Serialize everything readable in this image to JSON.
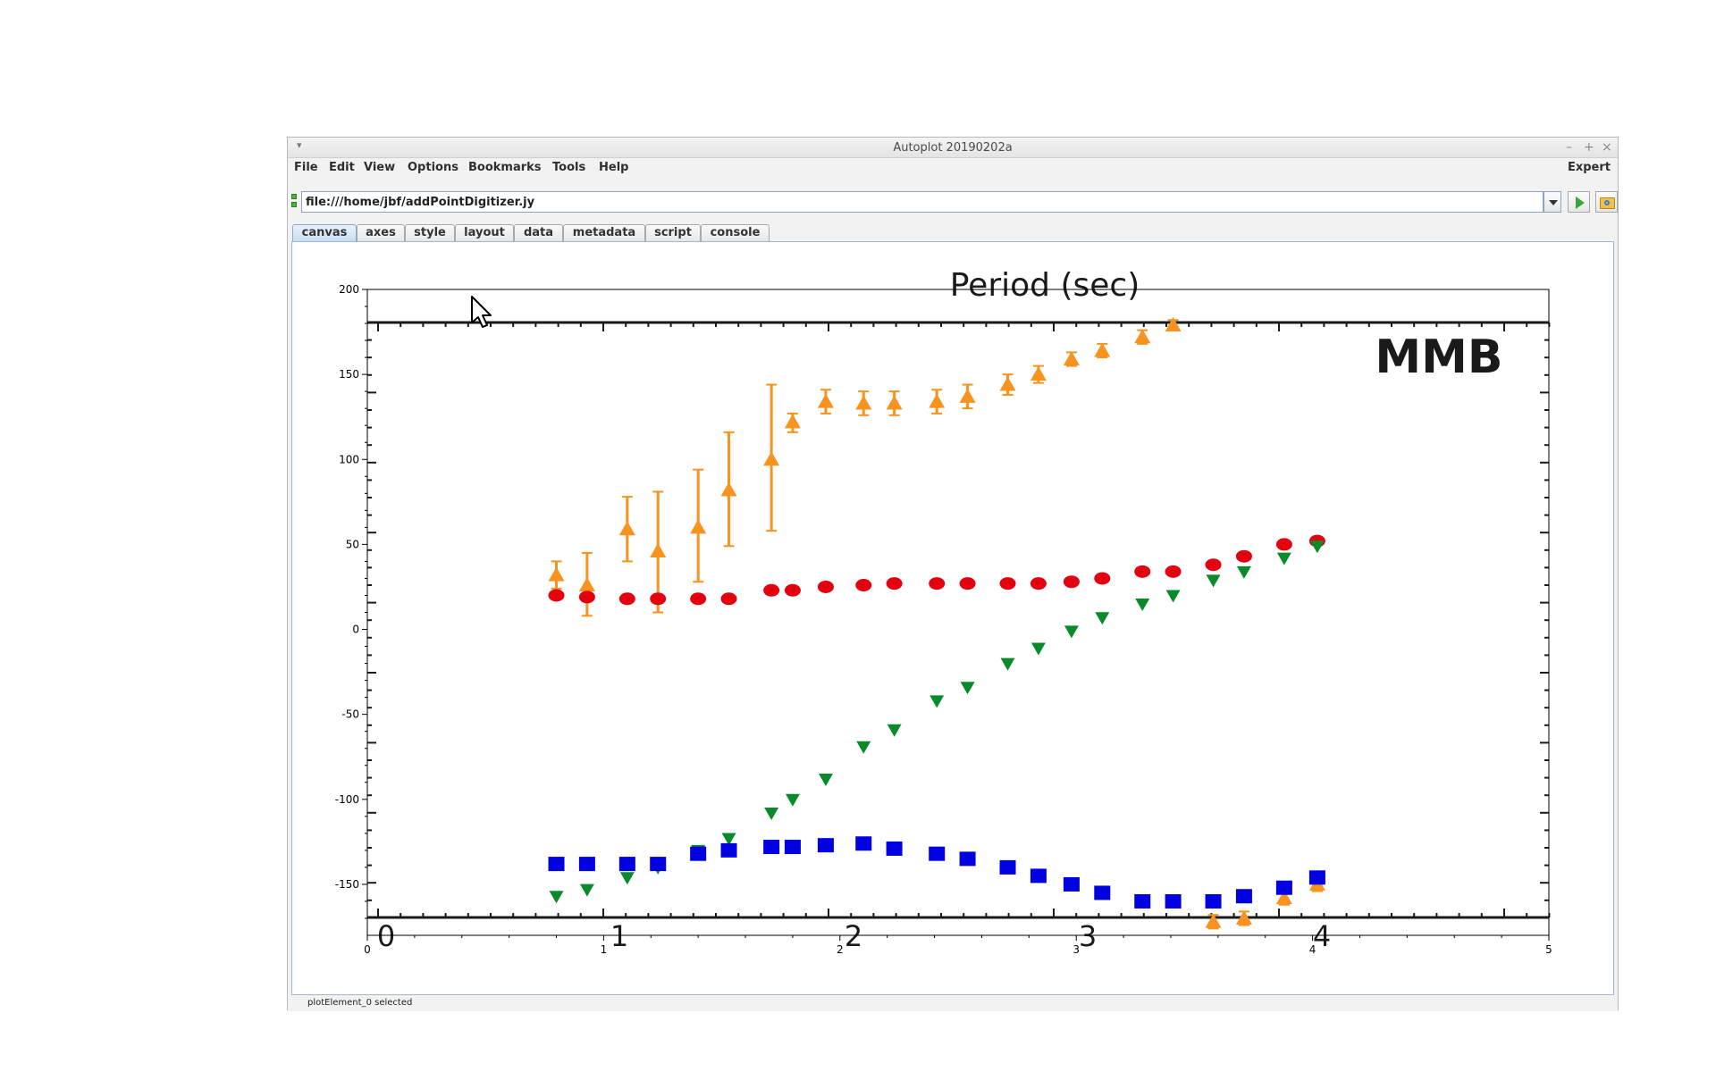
{
  "window": {
    "title": "Autoplot 20190202a",
    "menu_glyph": "▾",
    "minimize": "–",
    "maximize": "+",
    "close": "×"
  },
  "menubar": {
    "items": [
      "File",
      "Edit",
      "View",
      "Options",
      "Bookmarks",
      "Tools",
      "Help"
    ],
    "expert": "Expert"
  },
  "url": {
    "value": "file:///home/jbf/addPointDigitizer.jy"
  },
  "tabs": [
    "canvas",
    "axes",
    "style",
    "layout",
    "data",
    "metadata",
    "script",
    "console"
  ],
  "active_tab": "canvas",
  "status": {
    "text": "plotElement_0 selected"
  },
  "icons": {
    "url_status": "status-indicator-icon",
    "dropdown": "dropdown-arrow-icon",
    "go": "play-icon",
    "browse": "folder-browse-icon",
    "cursor": "mouse-pointer-icon"
  },
  "background_image": {
    "top_label": "Period (sec)",
    "corner_label": "MMB",
    "x_ticks": [
      "0",
      "1",
      "2",
      "3",
      "4"
    ]
  },
  "chart_data": {
    "type": "scatter",
    "title": "",
    "xlabel": "",
    "ylabel": "",
    "xlim": [
      0,
      5
    ],
    "ylim": [
      -180,
      200
    ],
    "x_ticks": [
      "0",
      "1",
      "2",
      "3",
      "4",
      "5"
    ],
    "y_ticks": [
      "200",
      "150",
      "100",
      "50",
      "0",
      "-50",
      "-100",
      "-150"
    ],
    "grid": false,
    "series": [
      {
        "marker": "triangle-up",
        "color": "#f7931e",
        "points": [
          [
            0.8,
            32,
            40,
            24
          ],
          [
            0.93,
            26,
            45,
            8
          ],
          [
            1.1,
            59,
            78,
            40
          ],
          [
            1.23,
            46,
            81,
            10
          ],
          [
            1.4,
            60,
            94,
            28
          ],
          [
            1.53,
            82,
            116,
            49
          ],
          [
            1.71,
            100,
            144,
            58
          ],
          [
            1.8,
            122,
            127,
            116
          ],
          [
            1.94,
            134,
            141,
            127
          ],
          [
            2.1,
            133,
            140,
            126
          ],
          [
            2.23,
            133,
            140,
            126
          ],
          [
            2.41,
            134,
            141,
            127
          ],
          [
            2.54,
            137,
            144,
            130
          ],
          [
            2.71,
            144,
            150,
            138
          ],
          [
            2.84,
            150,
            155,
            145
          ],
          [
            2.98,
            159,
            163,
            155
          ],
          [
            3.11,
            164,
            168,
            160
          ],
          [
            3.28,
            172,
            176,
            168
          ],
          [
            3.41,
            179,
            182,
            176
          ],
          [
            3.58,
            -172,
            -168,
            -176
          ],
          [
            3.71,
            -170,
            -166,
            -174
          ],
          [
            3.88,
            -158,
            -154,
            -162
          ],
          [
            4.02,
            -150,
            -146,
            -154
          ]
        ]
      },
      {
        "marker": "circle",
        "color": "#e3000f",
        "points": [
          [
            0.8,
            20
          ],
          [
            0.93,
            19
          ],
          [
            1.1,
            18
          ],
          [
            1.23,
            18
          ],
          [
            1.4,
            18
          ],
          [
            1.53,
            18
          ],
          [
            1.71,
            23
          ],
          [
            1.8,
            23
          ],
          [
            1.94,
            25
          ],
          [
            2.1,
            26
          ],
          [
            2.23,
            27
          ],
          [
            2.41,
            27
          ],
          [
            2.54,
            27
          ],
          [
            2.71,
            27
          ],
          [
            2.84,
            27
          ],
          [
            2.98,
            28
          ],
          [
            3.11,
            30
          ],
          [
            3.28,
            34
          ],
          [
            3.41,
            34
          ],
          [
            3.58,
            38
          ],
          [
            3.71,
            43
          ],
          [
            3.88,
            50
          ],
          [
            4.02,
            52
          ]
        ]
      },
      {
        "marker": "triangle-down",
        "color": "#0a8a2a",
        "points": [
          [
            0.8,
            -157
          ],
          [
            0.93,
            -153
          ],
          [
            1.1,
            -146
          ],
          [
            1.23,
            -140
          ],
          [
            1.4,
            -130
          ],
          [
            1.53,
            -123
          ],
          [
            1.71,
            -108
          ],
          [
            1.8,
            -100
          ],
          [
            1.94,
            -88
          ],
          [
            2.1,
            -69
          ],
          [
            2.23,
            -59
          ],
          [
            2.41,
            -42
          ],
          [
            2.54,
            -34
          ],
          [
            2.71,
            -20
          ],
          [
            2.84,
            -11
          ],
          [
            2.98,
            -1
          ],
          [
            3.11,
            7
          ],
          [
            3.28,
            15
          ],
          [
            3.41,
            20
          ],
          [
            3.58,
            29
          ],
          [
            3.71,
            34
          ],
          [
            3.88,
            42
          ],
          [
            4.02,
            49
          ]
        ]
      },
      {
        "marker": "square",
        "color": "#0000e0",
        "points": [
          [
            0.8,
            -138
          ],
          [
            0.93,
            -138
          ],
          [
            1.1,
            -138
          ],
          [
            1.23,
            -138
          ],
          [
            1.4,
            -132
          ],
          [
            1.53,
            -130
          ],
          [
            1.71,
            -128
          ],
          [
            1.8,
            -128
          ],
          [
            1.94,
            -127
          ],
          [
            2.1,
            -126
          ],
          [
            2.23,
            -129
          ],
          [
            2.41,
            -132
          ],
          [
            2.54,
            -135
          ],
          [
            2.71,
            -140
          ],
          [
            2.84,
            -145
          ],
          [
            2.98,
            -150
          ],
          [
            3.11,
            -155
          ],
          [
            3.28,
            -160
          ],
          [
            3.41,
            -160
          ],
          [
            3.58,
            -160
          ],
          [
            3.71,
            -157
          ],
          [
            3.88,
            -152
          ],
          [
            4.02,
            -146
          ]
        ]
      }
    ]
  }
}
